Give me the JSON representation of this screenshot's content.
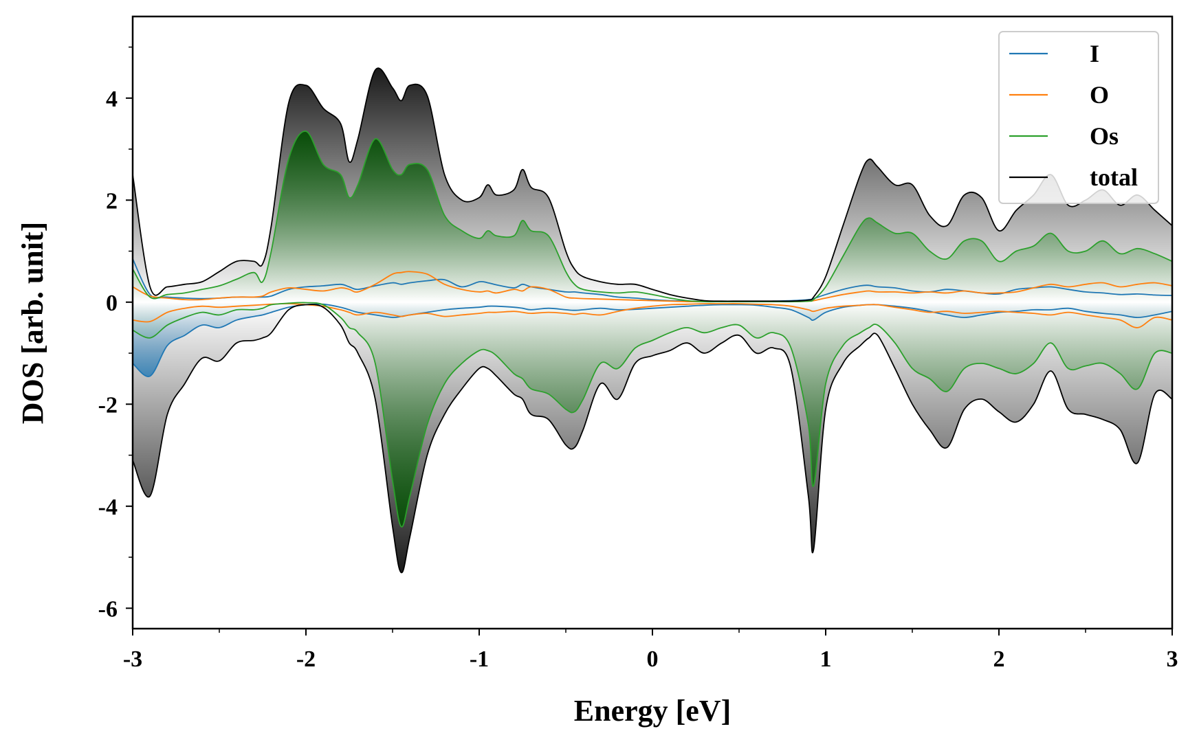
{
  "chart_data": {
    "type": "line",
    "title": "",
    "xlabel": "Energy [eV]",
    "ylabel": "DOS [arb. unit]",
    "xlim": [
      -3,
      3
    ],
    "ylim": [
      -6.4,
      5.6
    ],
    "xticks": [
      -3,
      -2,
      -1,
      0,
      1,
      2,
      3
    ],
    "xtick_labels": [
      "-3",
      "-2",
      "-1",
      "0",
      "1",
      "2",
      "3"
    ],
    "yticks": [
      -6,
      -4,
      -2,
      0,
      2,
      4
    ],
    "ytick_labels": [
      "-6",
      "-4",
      "-2",
      "0",
      "2",
      "4"
    ],
    "legend_position": "top-right",
    "grid": false,
    "x": [
      -3.0,
      -2.9,
      -2.8,
      -2.7,
      -2.6,
      -2.5,
      -2.4,
      -2.3,
      -2.25,
      -2.2,
      -2.1,
      -2.0,
      -1.9,
      -1.8,
      -1.75,
      -1.7,
      -1.6,
      -1.5,
      -1.45,
      -1.4,
      -1.3,
      -1.2,
      -1.1,
      -1.0,
      -0.95,
      -0.9,
      -0.8,
      -0.75,
      -0.7,
      -0.6,
      -0.5,
      -0.45,
      -0.4,
      -0.3,
      -0.2,
      -0.1,
      0.0,
      0.1,
      0.2,
      0.3,
      0.4,
      0.5,
      0.6,
      0.7,
      0.8,
      0.9,
      0.93,
      1.0,
      1.1,
      1.2,
      1.25,
      1.3,
      1.4,
      1.5,
      1.6,
      1.7,
      1.8,
      1.9,
      2.0,
      2.1,
      2.2,
      2.3,
      2.4,
      2.5,
      2.6,
      2.7,
      2.8,
      2.9,
      3.0
    ],
    "series": [
      {
        "name": "I",
        "color": "#1f77b4",
        "up": [
          0.85,
          0.15,
          0.1,
          0.08,
          0.07,
          0.08,
          0.1,
          0.1,
          0.1,
          0.12,
          0.25,
          0.3,
          0.32,
          0.35,
          0.3,
          0.25,
          0.32,
          0.38,
          0.35,
          0.38,
          0.42,
          0.44,
          0.3,
          0.4,
          0.38,
          0.34,
          0.28,
          0.35,
          0.3,
          0.25,
          0.2,
          0.2,
          0.18,
          0.15,
          0.1,
          0.08,
          0.05,
          0.03,
          0.02,
          0.01,
          0.01,
          0.01,
          0.01,
          0.02,
          0.03,
          0.05,
          0.07,
          0.15,
          0.25,
          0.32,
          0.33,
          0.3,
          0.28,
          0.22,
          0.2,
          0.25,
          0.22,
          0.18,
          0.16,
          0.25,
          0.28,
          0.3,
          0.25,
          0.2,
          0.18,
          0.15,
          0.16,
          0.14,
          0.13
        ],
        "down": [
          -1.2,
          -1.45,
          -0.85,
          -0.65,
          -0.45,
          -0.5,
          -0.35,
          -0.28,
          -0.25,
          -0.2,
          -0.1,
          -0.05,
          -0.04,
          -0.1,
          -0.15,
          -0.2,
          -0.25,
          -0.3,
          -0.28,
          -0.25,
          -0.2,
          -0.15,
          -0.12,
          -0.1,
          -0.08,
          -0.08,
          -0.1,
          -0.12,
          -0.15,
          -0.12,
          -0.15,
          -0.16,
          -0.15,
          -0.12,
          -0.15,
          -0.14,
          -0.12,
          -0.1,
          -0.08,
          -0.06,
          -0.05,
          -0.05,
          -0.06,
          -0.1,
          -0.15,
          -0.3,
          -0.35,
          -0.2,
          -0.1,
          -0.06,
          -0.05,
          -0.05,
          -0.08,
          -0.12,
          -0.18,
          -0.25,
          -0.3,
          -0.25,
          -0.2,
          -0.18,
          -0.15,
          -0.15,
          -0.12,
          -0.18,
          -0.22,
          -0.25,
          -0.3,
          -0.25,
          -0.18
        ]
      },
      {
        "name": "O",
        "color": "#ff7f0e",
        "up": [
          0.3,
          0.12,
          0.08,
          0.05,
          0.05,
          0.08,
          0.1,
          0.1,
          0.12,
          0.2,
          0.28,
          0.25,
          0.22,
          0.28,
          0.25,
          0.2,
          0.35,
          0.55,
          0.58,
          0.6,
          0.55,
          0.35,
          0.25,
          0.2,
          0.22,
          0.18,
          0.25,
          0.22,
          0.3,
          0.25,
          0.1,
          0.08,
          0.07,
          0.06,
          0.05,
          0.04,
          0.03,
          0.02,
          0.01,
          0.01,
          0.01,
          0.01,
          0.01,
          0.01,
          0.01,
          0.02,
          0.03,
          0.08,
          0.15,
          0.2,
          0.22,
          0.2,
          0.2,
          0.18,
          0.2,
          0.18,
          0.22,
          0.18,
          0.18,
          0.2,
          0.28,
          0.35,
          0.3,
          0.35,
          0.38,
          0.3,
          0.35,
          0.38,
          0.32
        ],
        "down": [
          -0.35,
          -0.38,
          -0.2,
          -0.12,
          -0.08,
          -0.1,
          -0.08,
          -0.06,
          -0.05,
          -0.04,
          -0.03,
          -0.05,
          -0.08,
          -0.15,
          -0.2,
          -0.25,
          -0.2,
          -0.25,
          -0.28,
          -0.25,
          -0.22,
          -0.28,
          -0.25,
          -0.22,
          -0.2,
          -0.2,
          -0.18,
          -0.2,
          -0.22,
          -0.2,
          -0.22,
          -0.24,
          -0.22,
          -0.25,
          -0.18,
          -0.12,
          -0.08,
          -0.05,
          -0.04,
          -0.03,
          -0.03,
          -0.03,
          -0.04,
          -0.05,
          -0.08,
          -0.15,
          -0.18,
          -0.12,
          -0.08,
          -0.06,
          -0.05,
          -0.05,
          -0.1,
          -0.15,
          -0.2,
          -0.18,
          -0.22,
          -0.2,
          -0.18,
          -0.2,
          -0.22,
          -0.25,
          -0.2,
          -0.25,
          -0.3,
          -0.35,
          -0.5,
          -0.3,
          -0.35
        ]
      },
      {
        "name": "Os",
        "color": "#2ca02c",
        "up": [
          0.65,
          0.1,
          0.15,
          0.18,
          0.25,
          0.32,
          0.45,
          0.58,
          0.4,
          1.0,
          2.8,
          3.35,
          2.7,
          2.5,
          2.05,
          2.3,
          3.2,
          2.6,
          2.5,
          2.7,
          2.6,
          1.7,
          1.4,
          1.25,
          1.4,
          1.3,
          1.3,
          1.6,
          1.4,
          1.3,
          0.6,
          0.35,
          0.25,
          0.2,
          0.18,
          0.2,
          0.15,
          0.08,
          0.03,
          0.01,
          0.01,
          0.01,
          0.01,
          0.01,
          0.01,
          0.02,
          0.05,
          0.3,
          0.9,
          1.5,
          1.65,
          1.55,
          1.35,
          1.35,
          1.0,
          0.85,
          1.2,
          1.2,
          0.8,
          1.0,
          1.1,
          1.35,
          1.0,
          1.0,
          1.2,
          0.95,
          1.05,
          0.95,
          0.8
        ],
        "down": [
          -0.55,
          -0.7,
          -0.45,
          -0.3,
          -0.2,
          -0.25,
          -0.15,
          -0.15,
          -0.12,
          -0.05,
          -0.02,
          -0.01,
          -0.05,
          -0.3,
          -0.5,
          -0.6,
          -1.2,
          -3.5,
          -4.4,
          -3.8,
          -2.4,
          -1.6,
          -1.2,
          -0.95,
          -0.95,
          -1.05,
          -1.4,
          -1.5,
          -1.7,
          -1.8,
          -2.1,
          -2.15,
          -1.9,
          -1.2,
          -1.3,
          -0.9,
          -0.75,
          -0.6,
          -0.5,
          -0.6,
          -0.5,
          -0.45,
          -0.7,
          -0.6,
          -0.9,
          -2.4,
          -3.6,
          -1.6,
          -0.85,
          -0.6,
          -0.5,
          -0.45,
          -0.8,
          -1.3,
          -1.5,
          -1.75,
          -1.3,
          -1.2,
          -1.3,
          -1.4,
          -1.2,
          -0.8,
          -1.3,
          -1.25,
          -1.2,
          -1.4,
          -1.7,
          -1.0,
          -1.0
        ]
      },
      {
        "name": "total",
        "color": "#000000",
        "up": [
          2.5,
          0.3,
          0.3,
          0.35,
          0.4,
          0.6,
          0.8,
          0.8,
          0.75,
          1.5,
          3.9,
          4.25,
          3.8,
          3.5,
          2.75,
          3.2,
          4.55,
          4.2,
          3.95,
          4.25,
          4.05,
          2.5,
          2.0,
          2.05,
          2.3,
          2.1,
          2.2,
          2.6,
          2.25,
          2.05,
          1.0,
          0.65,
          0.5,
          0.4,
          0.35,
          0.35,
          0.25,
          0.15,
          0.08,
          0.03,
          0.02,
          0.02,
          0.02,
          0.02,
          0.02,
          0.04,
          0.1,
          0.5,
          1.5,
          2.5,
          2.8,
          2.65,
          2.3,
          2.3,
          1.7,
          1.5,
          2.1,
          2.05,
          1.4,
          1.8,
          2.1,
          2.5,
          1.9,
          2.0,
          2.2,
          1.9,
          2.1,
          1.8,
          1.5
        ],
        "down": [
          -3.1,
          -3.8,
          -2.2,
          -1.6,
          -1.1,
          -1.15,
          -0.8,
          -0.75,
          -0.7,
          -0.6,
          -0.15,
          -0.05,
          -0.1,
          -0.45,
          -0.8,
          -1.0,
          -1.9,
          -4.4,
          -5.3,
          -4.6,
          -3.0,
          -2.2,
          -1.7,
          -1.3,
          -1.3,
          -1.45,
          -1.8,
          -1.9,
          -2.2,
          -2.3,
          -2.8,
          -2.85,
          -2.5,
          -1.6,
          -1.9,
          -1.2,
          -1.05,
          -0.95,
          -0.8,
          -1.0,
          -0.8,
          -0.65,
          -1.0,
          -0.9,
          -1.3,
          -3.8,
          -4.85,
          -2.1,
          -1.2,
          -0.85,
          -0.7,
          -0.65,
          -1.3,
          -2.0,
          -2.5,
          -2.85,
          -2.1,
          -1.9,
          -2.15,
          -2.35,
          -2.0,
          -1.35,
          -2.1,
          -2.2,
          -2.3,
          -2.5,
          -3.15,
          -1.8,
          -1.9
        ]
      }
    ]
  }
}
